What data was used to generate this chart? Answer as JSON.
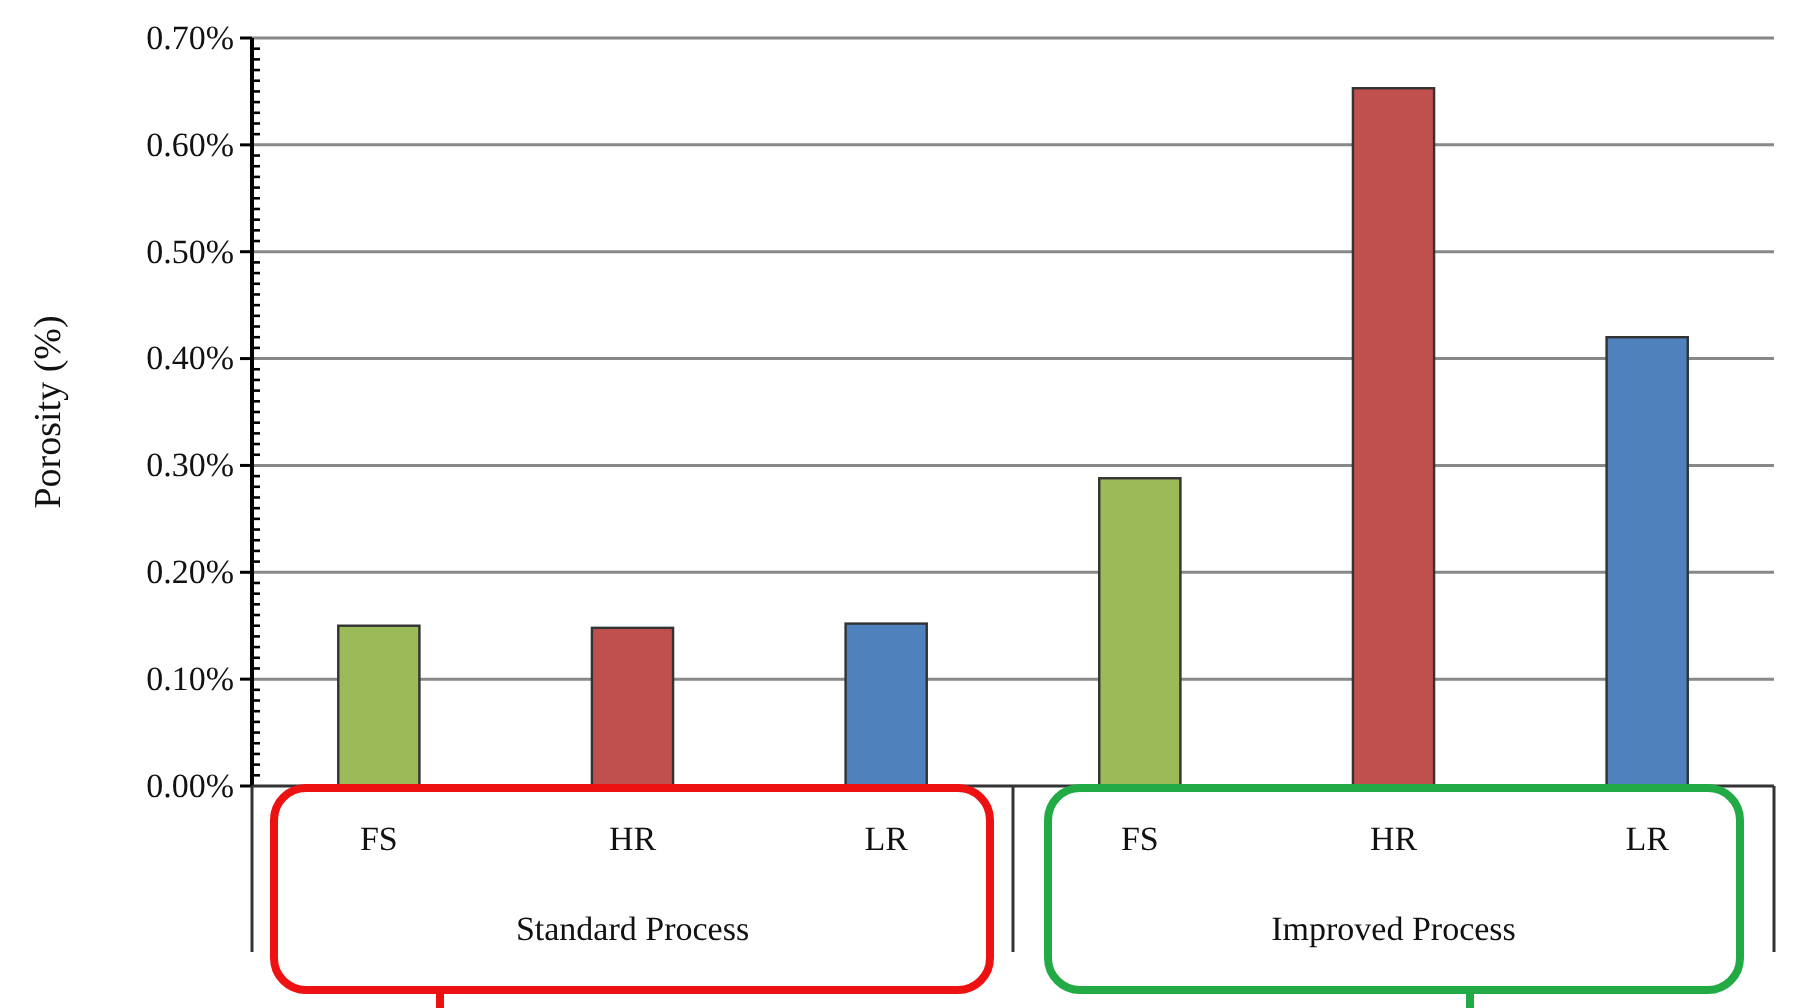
{
  "chart_data": {
    "type": "bar",
    "ylabel": "Porosity (%)",
    "categories": [
      "FS",
      "HR",
      "LR",
      "FS",
      "HR",
      "LR"
    ],
    "values": [
      0.15,
      0.148,
      0.152,
      0.288,
      0.653,
      0.42
    ],
    "colors": [
      "#9bbb59",
      "#c0504d",
      "#4f81bd",
      "#9bbb59",
      "#c0504d",
      "#4f81bd"
    ],
    "ylim": [
      0,
      0.7
    ],
    "yticks": [
      {
        "value": 0,
        "label": "0.00%"
      },
      {
        "value": 0.1,
        "label": "0.10%"
      },
      {
        "value": 0.2,
        "label": "0.20%"
      },
      {
        "value": 0.3,
        "label": "0.30%"
      },
      {
        "value": 0.4,
        "label": "0.40%"
      },
      {
        "value": 0.5,
        "label": "0.50%"
      },
      {
        "value": 0.6,
        "label": "0.60%"
      },
      {
        "value": 0.7,
        "label": "0.70%"
      }
    ],
    "grid": "y",
    "annotations": [
      "Standard Process",
      "Improved Process"
    ]
  }
}
